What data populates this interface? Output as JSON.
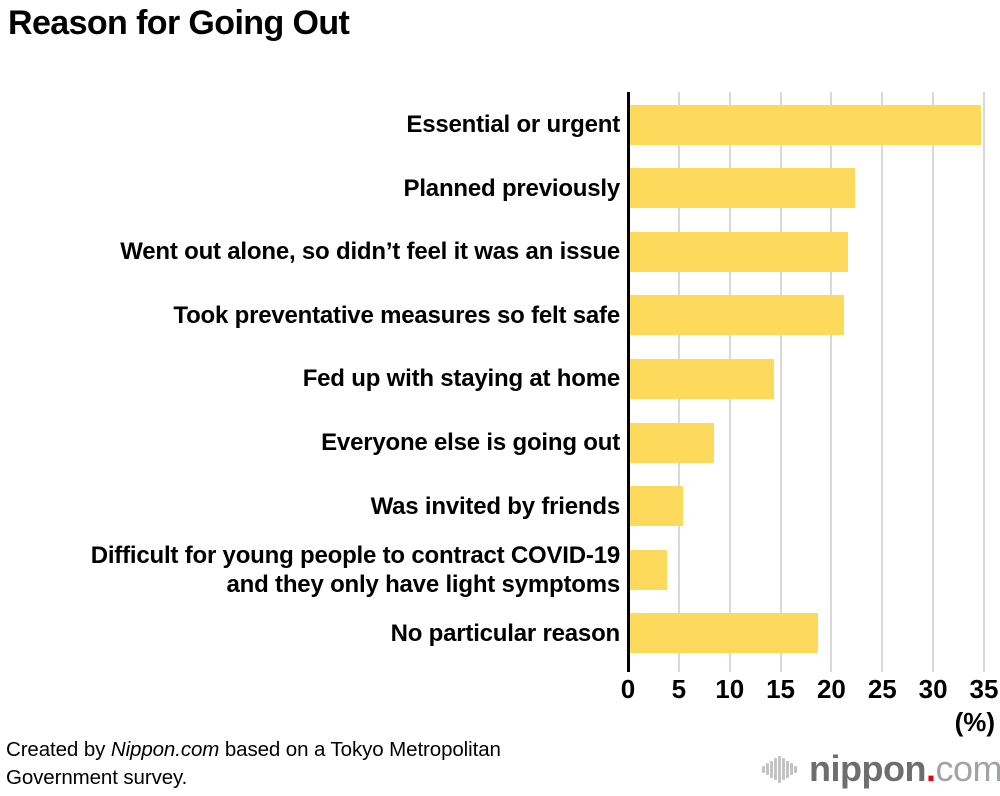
{
  "title": "Reason for Going Out",
  "chart_data": {
    "type": "bar",
    "orientation": "horizontal",
    "title": "Reason for Going Out",
    "categories": [
      "Essential or urgent",
      "Planned previously",
      "Went out alone, so didn’t feel it was an issue",
      "Took preventative measures so felt safe",
      "Fed up with staying at home",
      "Everyone else is going out",
      "Was invited by friends",
      "Difficult for young people to contract COVID-19\nand they only have light symptoms",
      "No particular reason"
    ],
    "values": [
      34.5,
      22.1,
      21.4,
      21.0,
      14.2,
      8.3,
      5.2,
      3.6,
      18.5
    ],
    "xlabel": "(%)",
    "xlim": [
      0,
      35
    ],
    "xticks": [
      0,
      5,
      10,
      15,
      20,
      25,
      30,
      35
    ],
    "grid": true,
    "legend": false,
    "bar_color": "#FDD95C",
    "gridline_color": "#D9D9D9",
    "axis_color": "#000000"
  },
  "footer": {
    "credit_prefix": "Created by ",
    "credit_brand": "Nippon.com",
    "credit_line1_suffix": " based on a Tokyo Metropolitan",
    "credit_line2": "Government survey.",
    "logo": {
      "name": "nippon",
      "dot": ".",
      "tld": "com",
      "icon": "sound-wave-bars-icon",
      "name_color": "#6e6e6e",
      "dot_color": "#e60012",
      "tld_color": "#a2a3a3"
    }
  }
}
